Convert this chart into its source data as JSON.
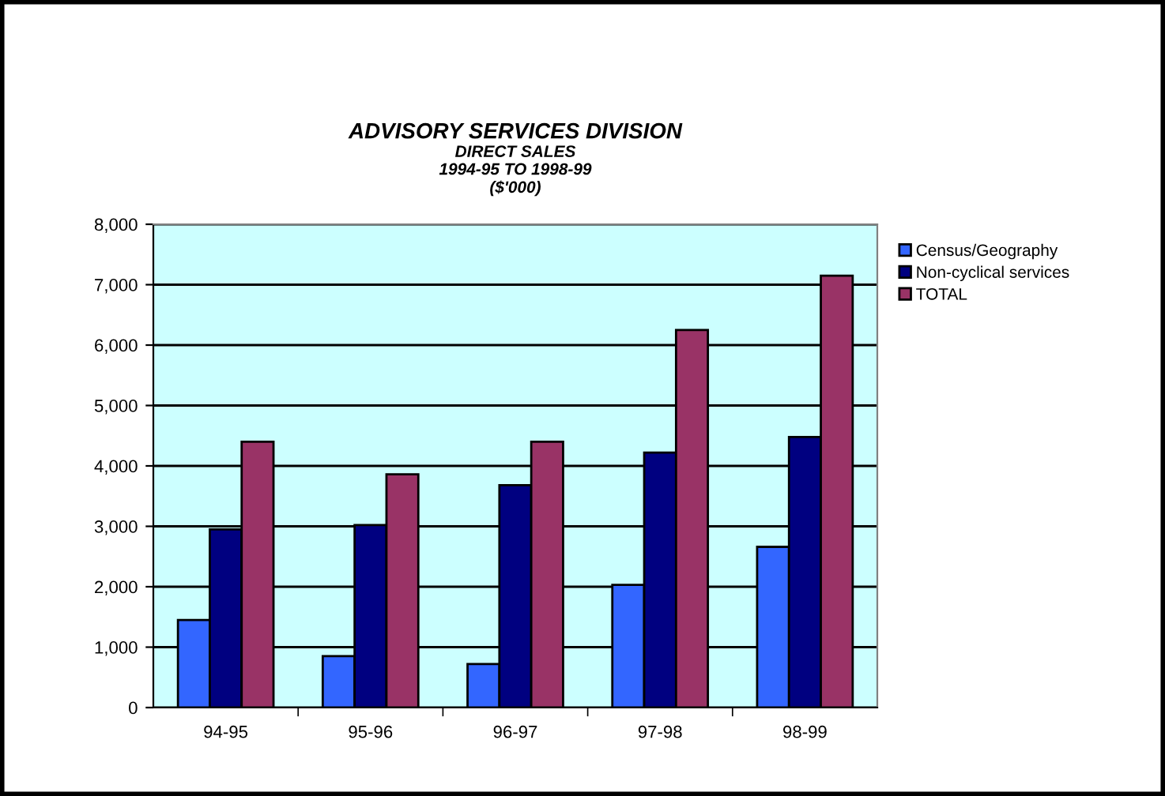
{
  "chart_data": {
    "type": "bar",
    "title": "ADVISORY SERVICES DIVISION",
    "subtitle": "DIRECT SALES\n1994-95 TO 1998-99\n($'000)",
    "categories": [
      "94-95",
      "95-96",
      "96-97",
      "97-98",
      "98-99"
    ],
    "series": [
      {
        "name": "Census/Geography",
        "color": "#3366ff",
        "values": [
          1450,
          850,
          720,
          2030,
          2660
        ]
      },
      {
        "name": "Non-cyclical services",
        "color": "#000080",
        "values": [
          2950,
          3020,
          3680,
          4220,
          4480
        ]
      },
      {
        "name": "TOTAL",
        "color": "#993366",
        "values": [
          4400,
          3860,
          4400,
          6250,
          7150
        ]
      }
    ],
    "ylim": [
      0,
      8000
    ],
    "yticks": [
      {
        "value": 0,
        "label": "0"
      },
      {
        "value": 1000,
        "label": "1,000"
      },
      {
        "value": 2000,
        "label": "2,000"
      },
      {
        "value": 3000,
        "label": "3,000"
      },
      {
        "value": 4000,
        "label": "4,000"
      },
      {
        "value": 5000,
        "label": "5,000"
      },
      {
        "value": 6000,
        "label": "6,000"
      },
      {
        "value": 7000,
        "label": "7,000"
      },
      {
        "value": 8000,
        "label": "8,000"
      }
    ],
    "grid": "y",
    "legend": "top right"
  }
}
